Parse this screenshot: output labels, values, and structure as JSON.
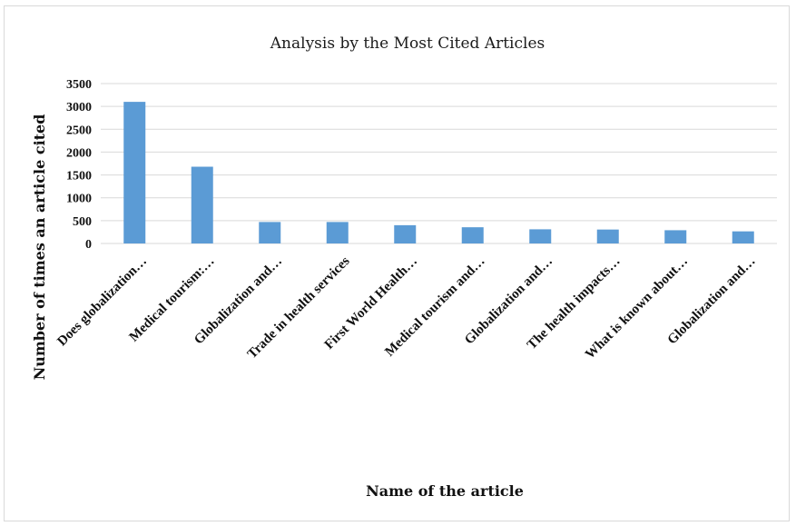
{
  "chart_data": {
    "type": "bar",
    "title": "Analysis by the Most Cited Articles",
    "xlabel": "Name of the article",
    "ylabel": "Number of times an article cited",
    "categories": [
      "Does globalization…",
      "Medical tourism:…",
      "Globalization and…",
      "Trade in health services",
      "First World Health…",
      "Medical tourism and…",
      "Globalization and…",
      "The health impacts…",
      "What is known about…",
      "Globalization and…"
    ],
    "values": [
      3100,
      1680,
      470,
      470,
      400,
      355,
      310,
      305,
      290,
      265
    ],
    "ylim": [
      0,
      3500
    ],
    "yticks": [
      "0",
      "500",
      "1000",
      "1500",
      "2000",
      "2500",
      "3000",
      "3500"
    ],
    "grid": true,
    "legend": "none",
    "bar_color": "#5b9bd5"
  }
}
